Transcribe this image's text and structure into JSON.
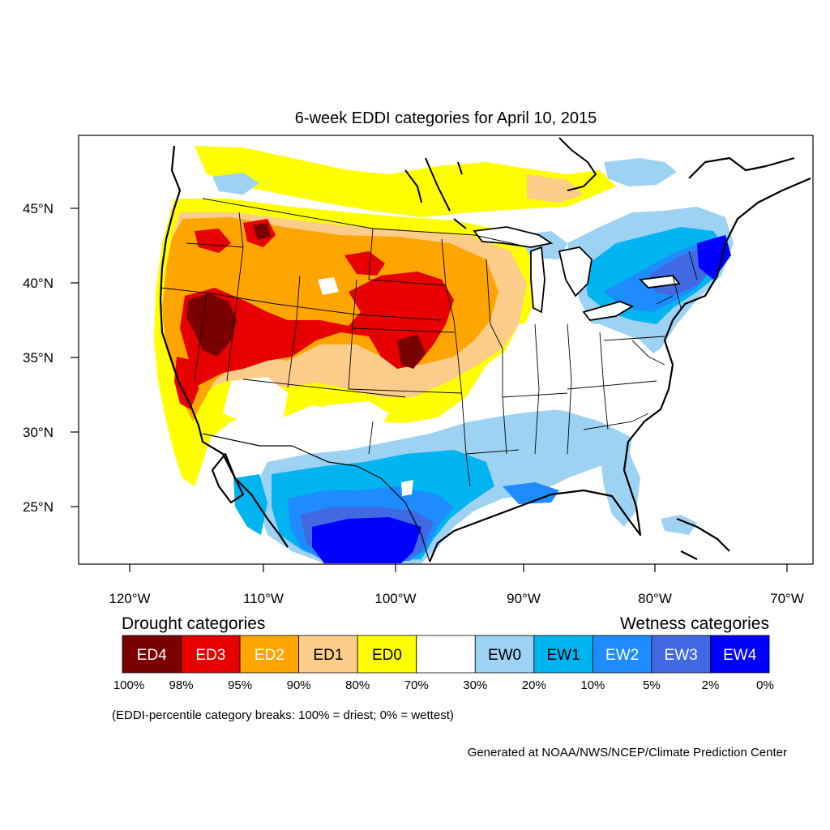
{
  "title": "6-week EDDI categories for April 10, 2015",
  "lat_labels": [
    "45°N",
    "40°N",
    "35°N",
    "30°N",
    "25°N"
  ],
  "lon_labels": [
    "120°W",
    "110°W",
    "100°W",
    "90°W",
    "80°W",
    "70°W"
  ],
  "legend": {
    "drought_title": "Drought categories",
    "wetness_title": "Wetness categories",
    "segments": [
      {
        "label": "ED4",
        "color": "#7a0000",
        "text_color": "#ffffff"
      },
      {
        "label": "ED3",
        "color": "#e60000",
        "text_color": "#ffffff"
      },
      {
        "label": "ED2",
        "color": "#ffa500",
        "text_color": "#ffffff"
      },
      {
        "label": "ED1",
        "color": "#fccd8a",
        "text_color": "#000000"
      },
      {
        "label": "ED0",
        "color": "#ffff00",
        "text_color": "#000000"
      },
      {
        "label": "",
        "color": "#ffffff",
        "text_color": "#000000"
      },
      {
        "label": "EW0",
        "color": "#9dd2f2",
        "text_color": "#000000"
      },
      {
        "label": "EW1",
        "color": "#00b4f0",
        "text_color": "#000000"
      },
      {
        "label": "EW2",
        "color": "#1e8cff",
        "text_color": "#ffffff"
      },
      {
        "label": "EW3",
        "color": "#4169e1",
        "text_color": "#ffffff"
      },
      {
        "label": "EW4",
        "color": "#0000ff",
        "text_color": "#ffffff"
      }
    ],
    "breaks": [
      "100%",
      "98%",
      "95%",
      "90%",
      "80%",
      "70%",
      "30%",
      "20%",
      "10%",
      "5%",
      "2%",
      "0%"
    ]
  },
  "note": "(EDDI-percentile category breaks: 100% = driest; 0% = wettest)",
  "credit": "Generated at NOAA/NWS/NCEP/Climate Prediction Center"
}
